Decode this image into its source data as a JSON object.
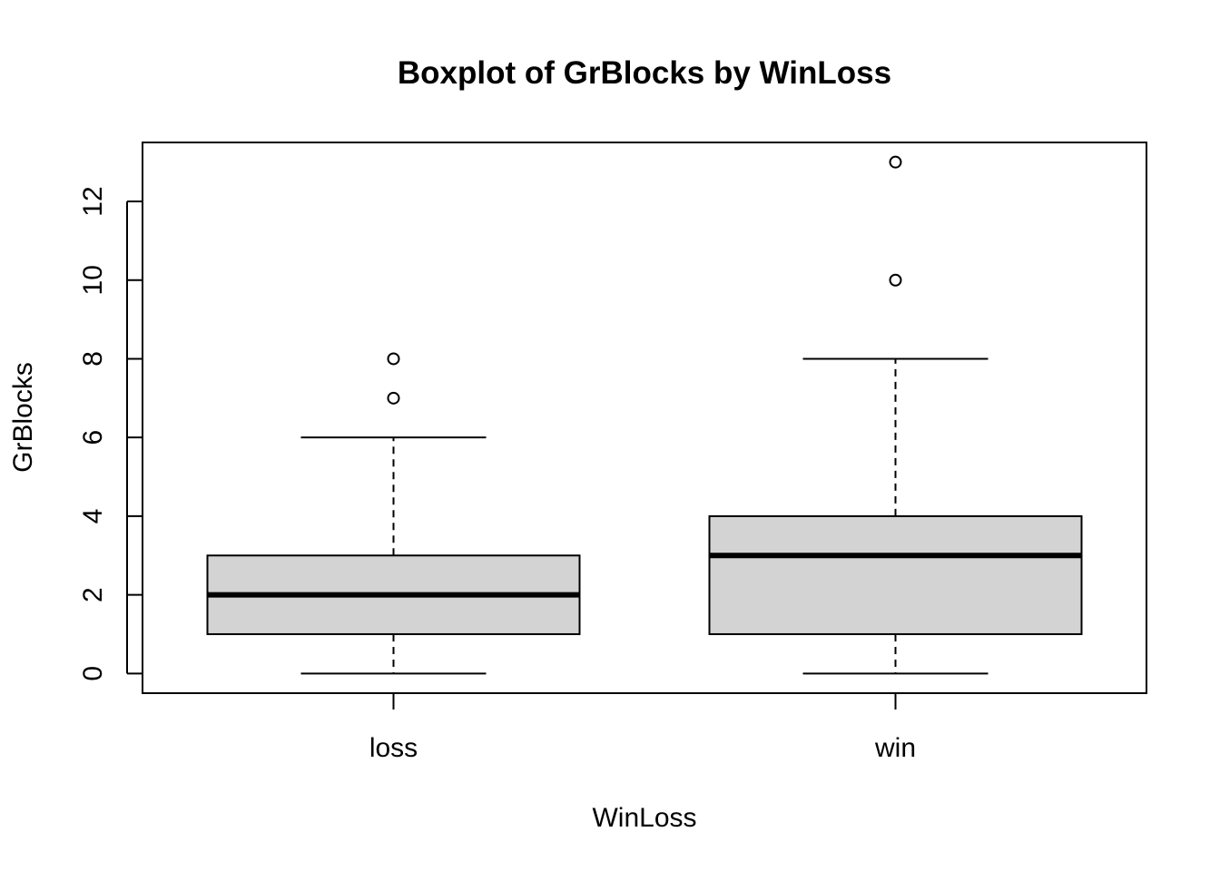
{
  "chart_data": {
    "type": "boxplot",
    "title": "Boxplot of GrBlocks by WinLoss",
    "xlabel": "WinLoss",
    "ylabel": "GrBlocks",
    "categories": [
      "loss",
      "win"
    ],
    "ylim": [
      -0.5,
      13.5
    ],
    "yticks": [
      0,
      2,
      4,
      6,
      8,
      10,
      12
    ],
    "ytick_labels": [
      "0",
      "2",
      "4",
      "6",
      "8",
      "10",
      "12"
    ],
    "grid": false,
    "box_fill": "#d3d3d3",
    "boxes": [
      {
        "category": "loss",
        "whisker_low": 0,
        "q1": 1,
        "median": 2,
        "q3": 3,
        "whisker_high": 6,
        "outliers": [
          7,
          8
        ]
      },
      {
        "category": "win",
        "whisker_low": 0,
        "q1": 1,
        "median": 3,
        "q3": 4,
        "whisker_high": 8,
        "outliers": [
          10,
          13
        ]
      }
    ]
  }
}
